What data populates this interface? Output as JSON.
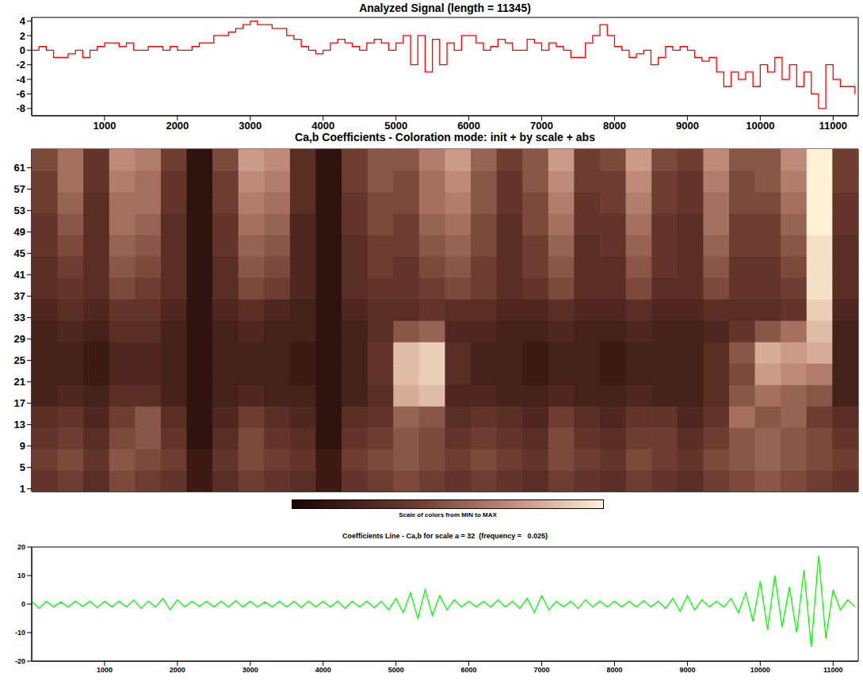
{
  "chart_data": [
    {
      "type": "line",
      "title": "Analyzed Signal (length = 11345)",
      "color": "#ff0000",
      "line_style": "step",
      "grid": false,
      "xlim": [
        0,
        11345
      ],
      "xticks": [
        1000,
        2000,
        3000,
        4000,
        5000,
        6000,
        7000,
        8000,
        9000,
        10000,
        11000
      ],
      "ylim": [
        -9,
        4.5
      ],
      "yticks": [
        -8,
        -6,
        -4,
        -2,
        0,
        2,
        4
      ],
      "x": [
        0,
        100,
        200,
        300,
        400,
        500,
        600,
        700,
        800,
        900,
        1000,
        1100,
        1200,
        1300,
        1400,
        1500,
        1600,
        1700,
        1800,
        1900,
        2000,
        2100,
        2200,
        2300,
        2400,
        2500,
        2600,
        2700,
        2800,
        2900,
        3000,
        3100,
        3200,
        3300,
        3400,
        3500,
        3600,
        3700,
        3800,
        3900,
        4000,
        4100,
        4200,
        4300,
        4400,
        4500,
        4600,
        4700,
        4800,
        4900,
        5000,
        5100,
        5200,
        5300,
        5400,
        5500,
        5600,
        5700,
        5800,
        5900,
        6000,
        6100,
        6200,
        6300,
        6400,
        6500,
        6600,
        6700,
        6800,
        6900,
        7000,
        7100,
        7200,
        7300,
        7400,
        7500,
        7600,
        7700,
        7800,
        7900,
        8000,
        8100,
        8200,
        8300,
        8400,
        8500,
        8600,
        8700,
        8800,
        8900,
        9000,
        9100,
        9200,
        9300,
        9400,
        9500,
        9600,
        9700,
        9800,
        9900,
        10000,
        10100,
        10200,
        10300,
        10400,
        10500,
        10600,
        10700,
        10800,
        10900,
        11000,
        11100,
        11200,
        11300
      ],
      "values": [
        0,
        0.5,
        0,
        -1,
        -1,
        -0.5,
        0,
        -1,
        0,
        0.5,
        1,
        1,
        0.5,
        1,
        0,
        0,
        0.5,
        0.5,
        0,
        0.5,
        0,
        0,
        0.5,
        1,
        1,
        2,
        2,
        2.5,
        3,
        3.5,
        4,
        3.5,
        3.5,
        3,
        3,
        2,
        1.5,
        0.5,
        0,
        -0.5,
        0,
        1,
        1.5,
        1,
        0.5,
        0,
        1,
        1.5,
        1,
        0,
        1,
        2,
        -2,
        2,
        -3,
        1.5,
        -2,
        1,
        0,
        2,
        2,
        1,
        0,
        0.5,
        1.5,
        1,
        0,
        0,
        1.5,
        1,
        0,
        1,
        0.5,
        0,
        -1,
        -1,
        1,
        2,
        3.5,
        2,
        0.5,
        0,
        -1,
        -0.5,
        0,
        -2,
        -1,
        0.5,
        0,
        0.5,
        0,
        -1,
        -1.5,
        -1,
        -3,
        -5,
        -3,
        -4,
        -3,
        -5,
        -2,
        -3,
        -1,
        -4,
        -2,
        -5,
        -3,
        -6,
        -8,
        -2,
        -4,
        -5,
        -5,
        -6
      ]
    },
    {
      "type": "heatmap",
      "title": "Ca,b Coefficients - Coloration mode: init + by scale + abs",
      "tick_labels": "y",
      "xlim": [
        0,
        11345
      ],
      "ylim": [
        0.5,
        64.5
      ],
      "yticks": [
        1,
        5,
        9,
        13,
        17,
        21,
        25,
        29,
        33,
        37,
        41,
        45,
        49,
        53,
        57,
        61
      ],
      "x": [
        177,
        532,
        886,
        1241,
        1595,
        1950,
        2304,
        2659,
        3013,
        3368,
        3722,
        4077,
        4431,
        4786,
        5140,
        5495,
        5850,
        6204,
        6559,
        6913,
        7268,
        7622,
        7977,
        8331,
        8686,
        9040,
        9395,
        9749,
        10104,
        10458,
        10813,
        11167
      ],
      "y": [
        2.5,
        6.5,
        10.5,
        14.5,
        18.5,
        22.5,
        26.5,
        30.5,
        34.5,
        38.5,
        42.5,
        46.5,
        50.5,
        54.5,
        58.5,
        62.5
      ],
      "cells": [
        [
          0.35,
          0.4,
          0.3,
          0.45,
          0.4,
          0.35,
          0.15,
          0.3,
          0.4,
          0.35,
          0.3,
          0.15,
          0.35,
          0.4,
          0.45,
          0.4,
          0.35,
          0.4,
          0.35,
          0.3,
          0.4,
          0.35,
          0.3,
          0.4,
          0.35,
          0.3,
          0.4,
          0.45,
          0.5,
          0.45,
          0.4,
          0.35
        ],
        [
          0.4,
          0.45,
          0.35,
          0.5,
          0.45,
          0.4,
          0.15,
          0.35,
          0.45,
          0.4,
          0.35,
          0.15,
          0.4,
          0.45,
          0.5,
          0.45,
          0.4,
          0.45,
          0.4,
          0.35,
          0.45,
          0.4,
          0.35,
          0.45,
          0.4,
          0.35,
          0.45,
          0.5,
          0.55,
          0.5,
          0.45,
          0.4
        ],
        [
          0.35,
          0.4,
          0.3,
          0.45,
          0.5,
          0.35,
          0.1,
          0.3,
          0.45,
          0.35,
          0.3,
          0.1,
          0.35,
          0.4,
          0.5,
          0.45,
          0.35,
          0.4,
          0.35,
          0.3,
          0.45,
          0.35,
          0.3,
          0.4,
          0.4,
          0.3,
          0.4,
          0.5,
          0.55,
          0.5,
          0.45,
          0.35
        ],
        [
          0.3,
          0.35,
          0.25,
          0.4,
          0.5,
          0.3,
          0.1,
          0.25,
          0.4,
          0.3,
          0.25,
          0.1,
          0.3,
          0.35,
          0.55,
          0.5,
          0.3,
          0.35,
          0.3,
          0.25,
          0.4,
          0.3,
          0.25,
          0.35,
          0.35,
          0.25,
          0.35,
          0.6,
          0.5,
          0.55,
          0.4,
          0.3
        ],
        [
          0.2,
          0.25,
          0.2,
          0.3,
          0.3,
          0.2,
          0.1,
          0.2,
          0.25,
          0.2,
          0.2,
          0.1,
          0.2,
          0.3,
          0.8,
          0.85,
          0.25,
          0.25,
          0.2,
          0.2,
          0.25,
          0.2,
          0.2,
          0.25,
          0.2,
          0.2,
          0.3,
          0.5,
          0.6,
          0.55,
          0.5,
          0.2
        ],
        [
          0.2,
          0.2,
          0.15,
          0.25,
          0.25,
          0.2,
          0.1,
          0.2,
          0.2,
          0.2,
          0.15,
          0.1,
          0.2,
          0.35,
          0.85,
          0.9,
          0.3,
          0.2,
          0.2,
          0.15,
          0.2,
          0.2,
          0.15,
          0.2,
          0.2,
          0.2,
          0.3,
          0.45,
          0.75,
          0.7,
          0.65,
          0.2
        ],
        [
          0.2,
          0.2,
          0.15,
          0.25,
          0.25,
          0.2,
          0.1,
          0.2,
          0.2,
          0.2,
          0.15,
          0.1,
          0.2,
          0.35,
          0.85,
          0.9,
          0.3,
          0.2,
          0.2,
          0.15,
          0.2,
          0.2,
          0.15,
          0.2,
          0.2,
          0.2,
          0.3,
          0.5,
          0.8,
          0.75,
          0.8,
          0.2
        ],
        [
          0.2,
          0.25,
          0.2,
          0.3,
          0.3,
          0.2,
          0.1,
          0.2,
          0.25,
          0.2,
          0.2,
          0.1,
          0.2,
          0.3,
          0.5,
          0.55,
          0.25,
          0.25,
          0.2,
          0.2,
          0.25,
          0.2,
          0.2,
          0.25,
          0.2,
          0.2,
          0.25,
          0.35,
          0.5,
          0.6,
          0.85,
          0.2
        ],
        [
          0.25,
          0.3,
          0.25,
          0.35,
          0.35,
          0.25,
          0.1,
          0.25,
          0.3,
          0.25,
          0.2,
          0.1,
          0.25,
          0.3,
          0.3,
          0.35,
          0.3,
          0.3,
          0.25,
          0.25,
          0.3,
          0.25,
          0.25,
          0.3,
          0.25,
          0.25,
          0.3,
          0.3,
          0.3,
          0.35,
          0.9,
          0.25
        ],
        [
          0.3,
          0.35,
          0.3,
          0.45,
          0.4,
          0.3,
          0.1,
          0.3,
          0.45,
          0.4,
          0.25,
          0.1,
          0.3,
          0.35,
          0.35,
          0.4,
          0.45,
          0.4,
          0.3,
          0.35,
          0.45,
          0.3,
          0.3,
          0.45,
          0.3,
          0.3,
          0.45,
          0.35,
          0.35,
          0.4,
          0.95,
          0.3
        ],
        [
          0.3,
          0.4,
          0.3,
          0.5,
          0.45,
          0.3,
          0.1,
          0.3,
          0.5,
          0.45,
          0.25,
          0.1,
          0.3,
          0.4,
          0.35,
          0.45,
          0.5,
          0.4,
          0.3,
          0.4,
          0.5,
          0.3,
          0.3,
          0.5,
          0.35,
          0.3,
          0.5,
          0.35,
          0.35,
          0.45,
          0.95,
          0.3
        ],
        [
          0.35,
          0.45,
          0.3,
          0.55,
          0.5,
          0.3,
          0.1,
          0.35,
          0.55,
          0.5,
          0.25,
          0.1,
          0.3,
          0.4,
          0.4,
          0.5,
          0.55,
          0.45,
          0.3,
          0.4,
          0.55,
          0.3,
          0.35,
          0.55,
          0.35,
          0.3,
          0.55,
          0.4,
          0.4,
          0.5,
          0.95,
          0.3
        ],
        [
          0.35,
          0.5,
          0.3,
          0.6,
          0.55,
          0.3,
          0.1,
          0.35,
          0.6,
          0.55,
          0.25,
          0.1,
          0.35,
          0.45,
          0.4,
          0.55,
          0.6,
          0.45,
          0.3,
          0.45,
          0.6,
          0.35,
          0.35,
          0.6,
          0.35,
          0.3,
          0.6,
          0.4,
          0.4,
          0.55,
          1,
          0.35
        ],
        [
          0.4,
          0.55,
          0.3,
          0.6,
          0.6,
          0.35,
          0.1,
          0.4,
          0.65,
          0.6,
          0.3,
          0.1,
          0.35,
          0.45,
          0.45,
          0.6,
          0.65,
          0.5,
          0.35,
          0.45,
          0.65,
          0.35,
          0.4,
          0.65,
          0.4,
          0.35,
          0.6,
          0.45,
          0.45,
          0.6,
          1,
          0.35
        ],
        [
          0.4,
          0.6,
          0.35,
          0.65,
          0.6,
          0.35,
          0.1,
          0.4,
          0.7,
          0.65,
          0.3,
          0.1,
          0.4,
          0.5,
          0.45,
          0.6,
          0.7,
          0.5,
          0.35,
          0.5,
          0.7,
          0.4,
          0.4,
          0.7,
          0.4,
          0.35,
          0.65,
          0.45,
          0.5,
          0.65,
          1,
          0.4
        ],
        [
          0.45,
          0.6,
          0.35,
          0.7,
          0.65,
          0.4,
          0.1,
          0.45,
          0.75,
          0.7,
          0.3,
          0.1,
          0.4,
          0.5,
          0.5,
          0.65,
          0.75,
          0.55,
          0.4,
          0.5,
          0.75,
          0.4,
          0.45,
          0.75,
          0.45,
          0.4,
          0.7,
          0.5,
          0.5,
          0.7,
          1,
          0.4
        ]
      ],
      "colorbar": {
        "range": [
          0,
          1
        ],
        "label": "Scale of colors from MIN to MAX"
      }
    },
    {
      "type": "line",
      "title": "Coefficients Line - Ca,b for scale a = 32  (frequency =   0.025)",
      "color": "#00ff00",
      "line_style": "solid",
      "grid": false,
      "xlim": [
        0,
        11345
      ],
      "xticks": [
        1000,
        2000,
        3000,
        4000,
        5000,
        6000,
        7000,
        8000,
        9000,
        10000,
        11000
      ],
      "ylim": [
        -20,
        20
      ],
      "yticks": [
        -20,
        -10,
        0,
        10,
        20
      ],
      "x": [
        0,
        100,
        200,
        300,
        400,
        500,
        600,
        700,
        800,
        900,
        1000,
        1100,
        1200,
        1300,
        1400,
        1500,
        1600,
        1700,
        1800,
        1900,
        2000,
        2100,
        2200,
        2300,
        2400,
        2500,
        2600,
        2700,
        2800,
        2900,
        3000,
        3100,
        3200,
        3300,
        3400,
        3500,
        3600,
        3700,
        3800,
        3900,
        4000,
        4100,
        4200,
        4300,
        4400,
        4500,
        4600,
        4700,
        4800,
        4900,
        5000,
        5100,
        5200,
        5300,
        5400,
        5500,
        5600,
        5700,
        5800,
        5900,
        6000,
        6100,
        6200,
        6300,
        6400,
        6500,
        6600,
        6700,
        6800,
        6900,
        7000,
        7100,
        7200,
        7300,
        7400,
        7500,
        7600,
        7700,
        7800,
        7900,
        8000,
        8100,
        8200,
        8300,
        8400,
        8500,
        8600,
        8700,
        8800,
        8900,
        9000,
        9100,
        9200,
        9300,
        9400,
        9500,
        9600,
        9700,
        9800,
        9900,
        10000,
        10100,
        10200,
        10300,
        10400,
        10500,
        10600,
        10700,
        10800,
        10900,
        11000,
        11100,
        11200,
        11300
      ],
      "values": [
        1,
        -1.5,
        1,
        -1,
        0.8,
        -1,
        1,
        -0.8,
        1,
        -1.2,
        1,
        -1,
        1,
        -1,
        1.5,
        -1.5,
        1,
        -1,
        2,
        -2,
        1.5,
        -1,
        1,
        -0.8,
        1,
        -1,
        1,
        -1,
        1.2,
        -1,
        1,
        -1,
        0.8,
        -1,
        1,
        -1,
        1,
        -1.2,
        1,
        -1,
        1,
        -1,
        1,
        -1.5,
        1,
        -1,
        1,
        -1.2,
        1,
        -2,
        2,
        -3,
        4,
        -5,
        5,
        -4,
        3,
        -2,
        1.5,
        -1,
        1,
        -1,
        1,
        -1,
        1.5,
        -1,
        1,
        -1.5,
        2,
        -3,
        3,
        -2,
        1,
        -1,
        1,
        -1.5,
        1.5,
        -1,
        1,
        -1,
        1,
        -1,
        1,
        -1,
        1.2,
        -1,
        1,
        -1.5,
        2,
        -2.5,
        3,
        -2,
        1.5,
        -1,
        1,
        -1,
        2,
        -3,
        4,
        -6,
        8,
        -9,
        10,
        -8,
        6,
        -10,
        12,
        -15,
        17,
        -12,
        5,
        -2,
        1.5,
        -1
      ]
    }
  ]
}
